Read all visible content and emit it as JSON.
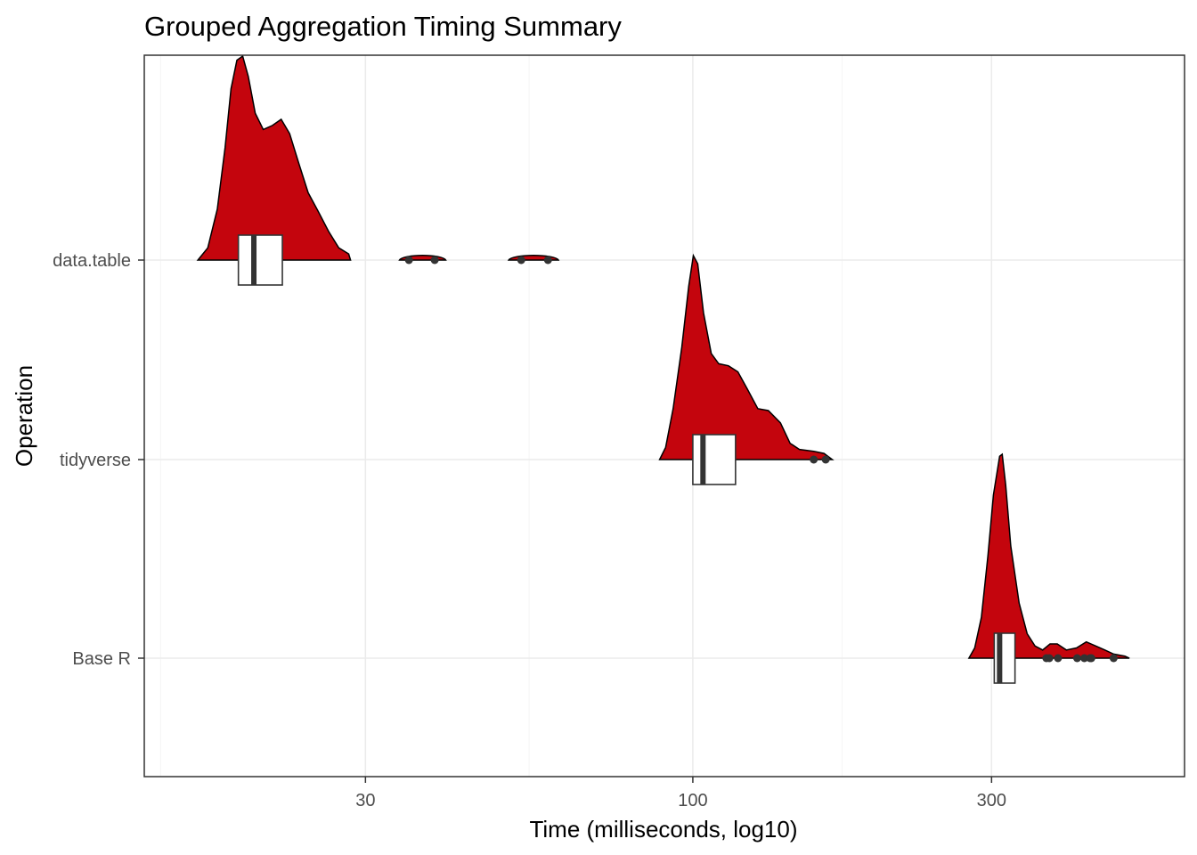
{
  "chart_data": {
    "type": "violin",
    "title": "Grouped Aggregation Timing Summary",
    "xlabel": "Time (milliseconds, log10)",
    "ylabel": "Operation",
    "x_scale": "log10",
    "xlim": [
      13.3,
      610
    ],
    "x_ticks": [
      30,
      100,
      300
    ],
    "x_tick_labels": [
      "30",
      "100",
      "300"
    ],
    "categories": [
      "data.table",
      "tidyverse",
      "Base R"
    ],
    "fill_color": "#c4050d",
    "grid": true,
    "series": [
      {
        "category": "data.table",
        "box": {
          "q1": 18.8,
          "median": 19.9,
          "q3": 22.1
        },
        "density": [
          [
            16.2,
            0.0
          ],
          [
            16.8,
            0.06
          ],
          [
            17.4,
            0.25
          ],
          [
            17.9,
            0.55
          ],
          [
            18.3,
            0.84
          ],
          [
            18.7,
            0.98
          ],
          [
            19.1,
            1.0
          ],
          [
            19.5,
            0.9
          ],
          [
            20.0,
            0.72
          ],
          [
            20.6,
            0.64
          ],
          [
            21.3,
            0.66
          ],
          [
            22.0,
            0.69
          ],
          [
            22.7,
            0.62
          ],
          [
            23.5,
            0.47
          ],
          [
            24.3,
            0.33
          ],
          [
            25.2,
            0.24
          ],
          [
            26.2,
            0.14
          ],
          [
            27.2,
            0.06
          ],
          [
            28.2,
            0.03
          ],
          [
            28.4,
            0.0
          ]
        ],
        "outlier_clusters": [
          {
            "range": [
              34.0,
              40.3
            ],
            "points": [
              35.2,
              38.7
            ]
          },
          {
            "range": [
              50.8,
              61.0
            ],
            "points": [
              53.2,
              58.7
            ]
          }
        ]
      },
      {
        "category": "tidyverse",
        "box": {
          "q1": 100.0,
          "median": 103.8,
          "q3": 117.0
        },
        "density": [
          [
            88.5,
            0.0
          ],
          [
            90.5,
            0.06
          ],
          [
            93.0,
            0.25
          ],
          [
            96.0,
            0.55
          ],
          [
            98.5,
            0.85
          ],
          [
            100.2,
            1.0
          ],
          [
            101.8,
            0.96
          ],
          [
            104.0,
            0.72
          ],
          [
            107.0,
            0.52
          ],
          [
            110.0,
            0.47
          ],
          [
            114.0,
            0.46
          ],
          [
            118.0,
            0.43
          ],
          [
            122.0,
            0.35
          ],
          [
            127.0,
            0.25
          ],
          [
            132.0,
            0.24
          ],
          [
            138.0,
            0.18
          ],
          [
            143.0,
            0.08
          ],
          [
            148.0,
            0.05
          ],
          [
            156.0,
            0.04
          ],
          [
            162.0,
            0.03
          ],
          [
            167.0,
            0.0
          ]
        ],
        "outliers": [
          156.0,
          163.0
        ]
      },
      {
        "category": "Base R",
        "box": {
          "q1": 303.0,
          "median": 309.0,
          "q3": 327.0
        },
        "density": [
          [
            276.0,
            0.0
          ],
          [
            282.0,
            0.05
          ],
          [
            289.0,
            0.2
          ],
          [
            296.0,
            0.5
          ],
          [
            302.0,
            0.8
          ],
          [
            309.0,
            0.99
          ],
          [
            312.0,
            1.0
          ],
          [
            316.0,
            0.85
          ],
          [
            322.0,
            0.55
          ],
          [
            332.0,
            0.27
          ],
          [
            342.0,
            0.12
          ],
          [
            352.0,
            0.06
          ],
          [
            362.0,
            0.04
          ],
          [
            372.0,
            0.07
          ],
          [
            382.0,
            0.07
          ],
          [
            395.0,
            0.04
          ],
          [
            410.0,
            0.05
          ],
          [
            425.0,
            0.08
          ],
          [
            440.0,
            0.06
          ],
          [
            455.0,
            0.04
          ],
          [
            470.0,
            0.02
          ],
          [
            490.0,
            0.01
          ],
          [
            498.0,
            0.0
          ]
        ],
        "outliers": [
          367.0,
          371.0,
          383.0,
          411.0,
          422.0,
          431.0,
          433.0,
          470.0
        ]
      }
    ]
  }
}
